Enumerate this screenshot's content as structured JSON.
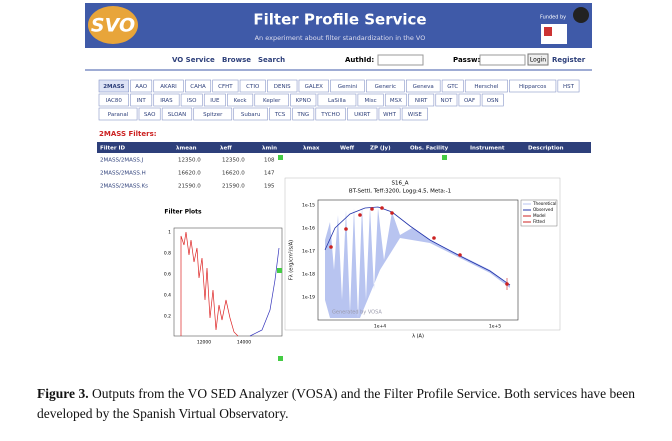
{
  "header": {
    "logo": "SVO",
    "title": "Filter Profile Service",
    "subtitle": "An experiment about filter standardization in the VO",
    "funded_by": "Funded by"
  },
  "nav": {
    "items": [
      "VO Service",
      "Browse",
      "Search"
    ],
    "authid": "AuthId:",
    "password": "Passw:",
    "login": "Login",
    "register": "Register"
  },
  "facilities": [
    [
      "2MASS",
      "AAO",
      "AKARI",
      "CAHA",
      "CFHT",
      "CTIO",
      "DENIS",
      "GALEX",
      "Gemini",
      "Generic",
      "Geneva",
      "GTC",
      "Herschel",
      "Hipparcos",
      "HST"
    ],
    [
      "IAC80",
      "INT",
      "IRAS",
      "ISO",
      "IUE",
      "Keck",
      "Kepler",
      "KPNO",
      "LaSilla",
      "Misc",
      "MSX",
      "NIRT",
      "NOT",
      "OAF",
      "OSN"
    ],
    [
      "Paranal",
      "SAO",
      "SLOAN",
      "Spitzer",
      "Subaru",
      "TCS",
      "TNG",
      "TYCHO",
      "UKIRT",
      "WHT",
      "WISE"
    ]
  ],
  "filters_heading": "2MASS Filters:",
  "table": {
    "columns": [
      "Filter ID",
      "λmean",
      "λeff",
      "λmin",
      "λmax",
      "Weff",
      "ZP (Jy)",
      "Obs. Facility",
      "Instrument",
      "Description"
    ],
    "rows": [
      [
        "2MASS/2MASS.J",
        "12350.0",
        "12350.0",
        "108"
      ],
      [
        "2MASS/2MASS.H",
        "16620.0",
        "16620.0",
        "147"
      ],
      [
        "2MASS/2MASS.Ks",
        "21590.0",
        "21590.0",
        "195"
      ]
    ]
  },
  "filter_plots": {
    "title": "Filter Plots",
    "xticks": [
      "12000",
      "14000"
    ],
    "yticks": [
      "1",
      "0.8",
      "0.6",
      "0.4",
      "0.2"
    ]
  },
  "sed_plot": {
    "title": "S16_A",
    "subtitle": "BT-Settl, Teff:3200, Logg:4.5, Meta:-1",
    "ylabel": "Fλ (erg/cm²/s/A)",
    "xlabel": "λ (A)",
    "yticks": [
      "1e-15",
      "1e-16",
      "1e-17",
      "1e-18",
      "1e-19"
    ],
    "xticks": [
      "1e+4",
      "1e+5"
    ],
    "legend": [
      "Theoretical",
      "Observed",
      "Model",
      "Fitted"
    ],
    "watermark": "Generated by VOSA"
  },
  "caption": {
    "label": "Figure 3.",
    "text": "Outputs from the VO SED Analyzer (VOSA) and the Filter Profile Service. Both services have been developed by the Spanish Virtual Observatory."
  }
}
